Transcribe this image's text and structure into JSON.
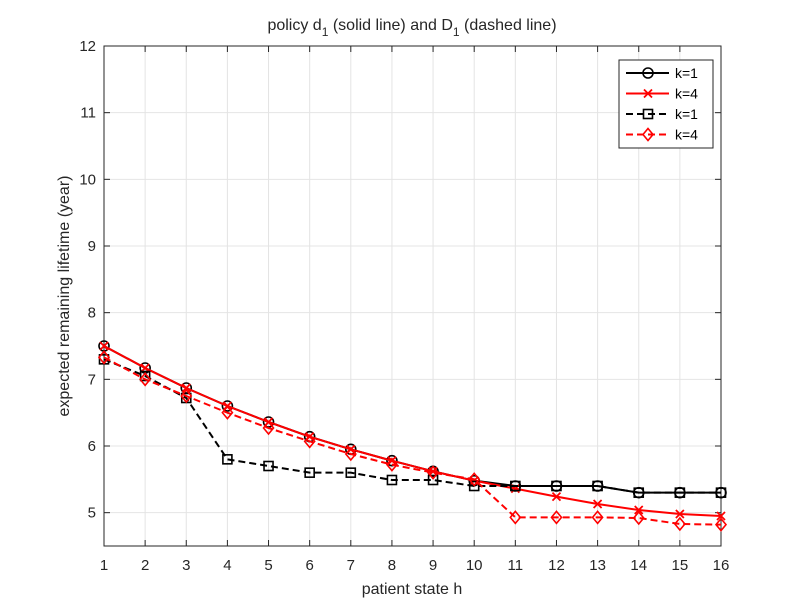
{
  "chart_data": {
    "type": "line",
    "title": {
      "main": "policy d",
      "sub1": "1",
      "mid": " (solid line) and D",
      "sub2": "1",
      "end": " (dashed line)"
    },
    "xlabel": "patient state h",
    "ylabel": "expected remaining lifetime (year)",
    "xlim": [
      1,
      16
    ],
    "ylim": [
      4.5,
      12
    ],
    "xticks": [
      1,
      2,
      3,
      4,
      5,
      6,
      7,
      8,
      9,
      10,
      11,
      12,
      13,
      14,
      15,
      16
    ],
    "yticks": [
      5,
      6,
      7,
      8,
      9,
      10,
      11,
      12
    ],
    "grid": true,
    "legend_position": "top-right",
    "x": [
      1,
      2,
      3,
      4,
      5,
      6,
      7,
      8,
      9,
      10,
      11,
      12,
      13,
      14,
      15,
      16
    ],
    "series": [
      {
        "name": "k=1",
        "color": "#000000",
        "dash": false,
        "marker": "circle",
        "values": [
          7.5,
          7.17,
          6.87,
          6.6,
          6.36,
          6.14,
          5.95,
          5.78,
          5.62,
          5.48,
          5.4,
          5.4,
          5.4,
          5.3,
          5.3,
          5.3
        ]
      },
      {
        "name": "k=4",
        "color": "#ff0000",
        "dash": false,
        "marker": "x",
        "values": [
          7.5,
          7.17,
          6.87,
          6.6,
          6.36,
          6.14,
          5.95,
          5.78,
          5.62,
          5.48,
          5.36,
          5.24,
          5.13,
          5.04,
          4.98,
          4.95
        ]
      },
      {
        "name": "k=1",
        "color": "#000000",
        "dash": true,
        "marker": "square",
        "values": [
          7.3,
          7.05,
          6.72,
          5.8,
          5.7,
          5.6,
          5.6,
          5.49,
          5.49,
          5.4,
          5.4,
          5.4,
          5.4,
          5.3,
          5.3,
          5.3
        ]
      },
      {
        "name": "k=4",
        "color": "#ff0000",
        "dash": true,
        "marker": "diamond",
        "values": [
          7.33,
          7.0,
          6.75,
          6.5,
          6.27,
          6.07,
          5.88,
          5.72,
          5.6,
          5.5,
          4.93,
          4.93,
          4.93,
          4.92,
          4.83,
          4.82
        ]
      }
    ]
  }
}
